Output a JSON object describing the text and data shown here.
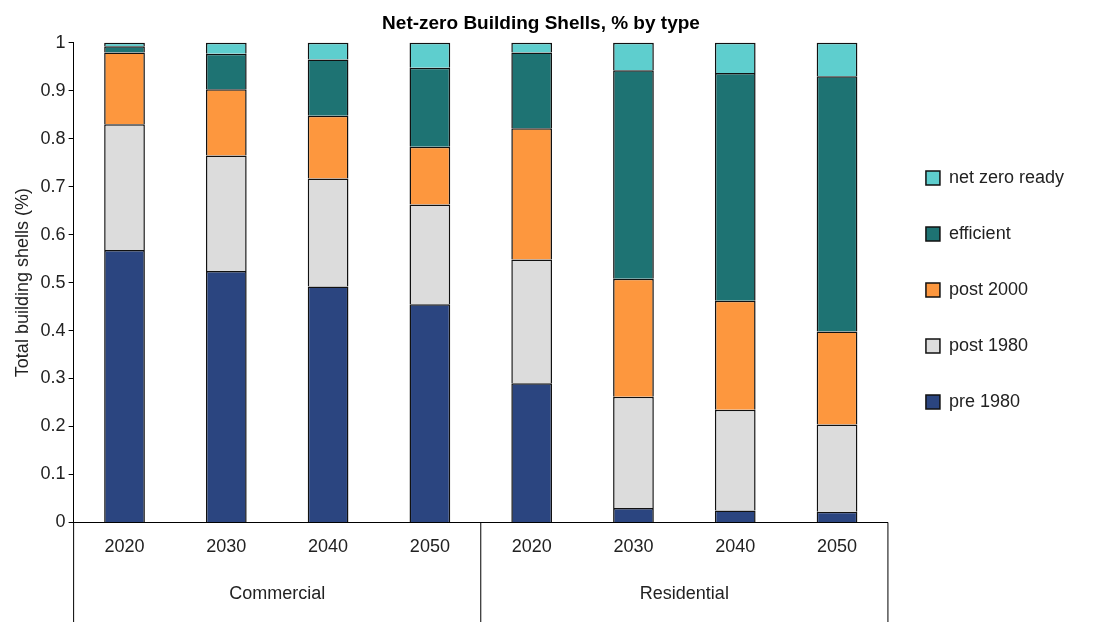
{
  "chart_data": {
    "type": "bar",
    "title": "Net-zero Building Shells, % by type",
    "ylabel": "Total building shells (%)",
    "categories": [
      "2020",
      "2030",
      "2040",
      "2050",
      "2020",
      "2030",
      "2040",
      "2050"
    ],
    "annotations": [
      "Commercial",
      "Residential"
    ],
    "stacked": true,
    "ylim": [
      0,
      1
    ],
    "yticks": [
      0,
      0.1,
      0.2,
      0.3,
      0.4,
      0.5,
      0.6,
      0.7,
      0.8,
      0.9,
      1
    ],
    "grid": false,
    "legend": "right",
    "series": [
      {
        "name": "pre 1980",
        "color": "#2b4580",
        "values": [
          0.568,
          0.524,
          0.492,
          0.455,
          0.29,
          0.03,
          0.025,
          0.022
        ]
      },
      {
        "name": "post 1980",
        "color": "#dcdcdc",
        "values": [
          0.262,
          0.241,
          0.225,
          0.208,
          0.258,
          0.232,
          0.21,
          0.182
        ]
      },
      {
        "name": "post 2000",
        "color": "#fd973e",
        "values": [
          0.15,
          0.138,
          0.131,
          0.12,
          0.274,
          0.246,
          0.227,
          0.194
        ]
      },
      {
        "name": "efficient",
        "color": "#1e7373",
        "values": [
          0.013,
          0.074,
          0.117,
          0.165,
          0.158,
          0.435,
          0.475,
          0.532
        ]
      },
      {
        "name": "net zero ready",
        "color": "#5ecece",
        "values": [
          0.007,
          0.023,
          0.035,
          0.052,
          0.02,
          0.057,
          0.063,
          0.07
        ]
      }
    ]
  }
}
